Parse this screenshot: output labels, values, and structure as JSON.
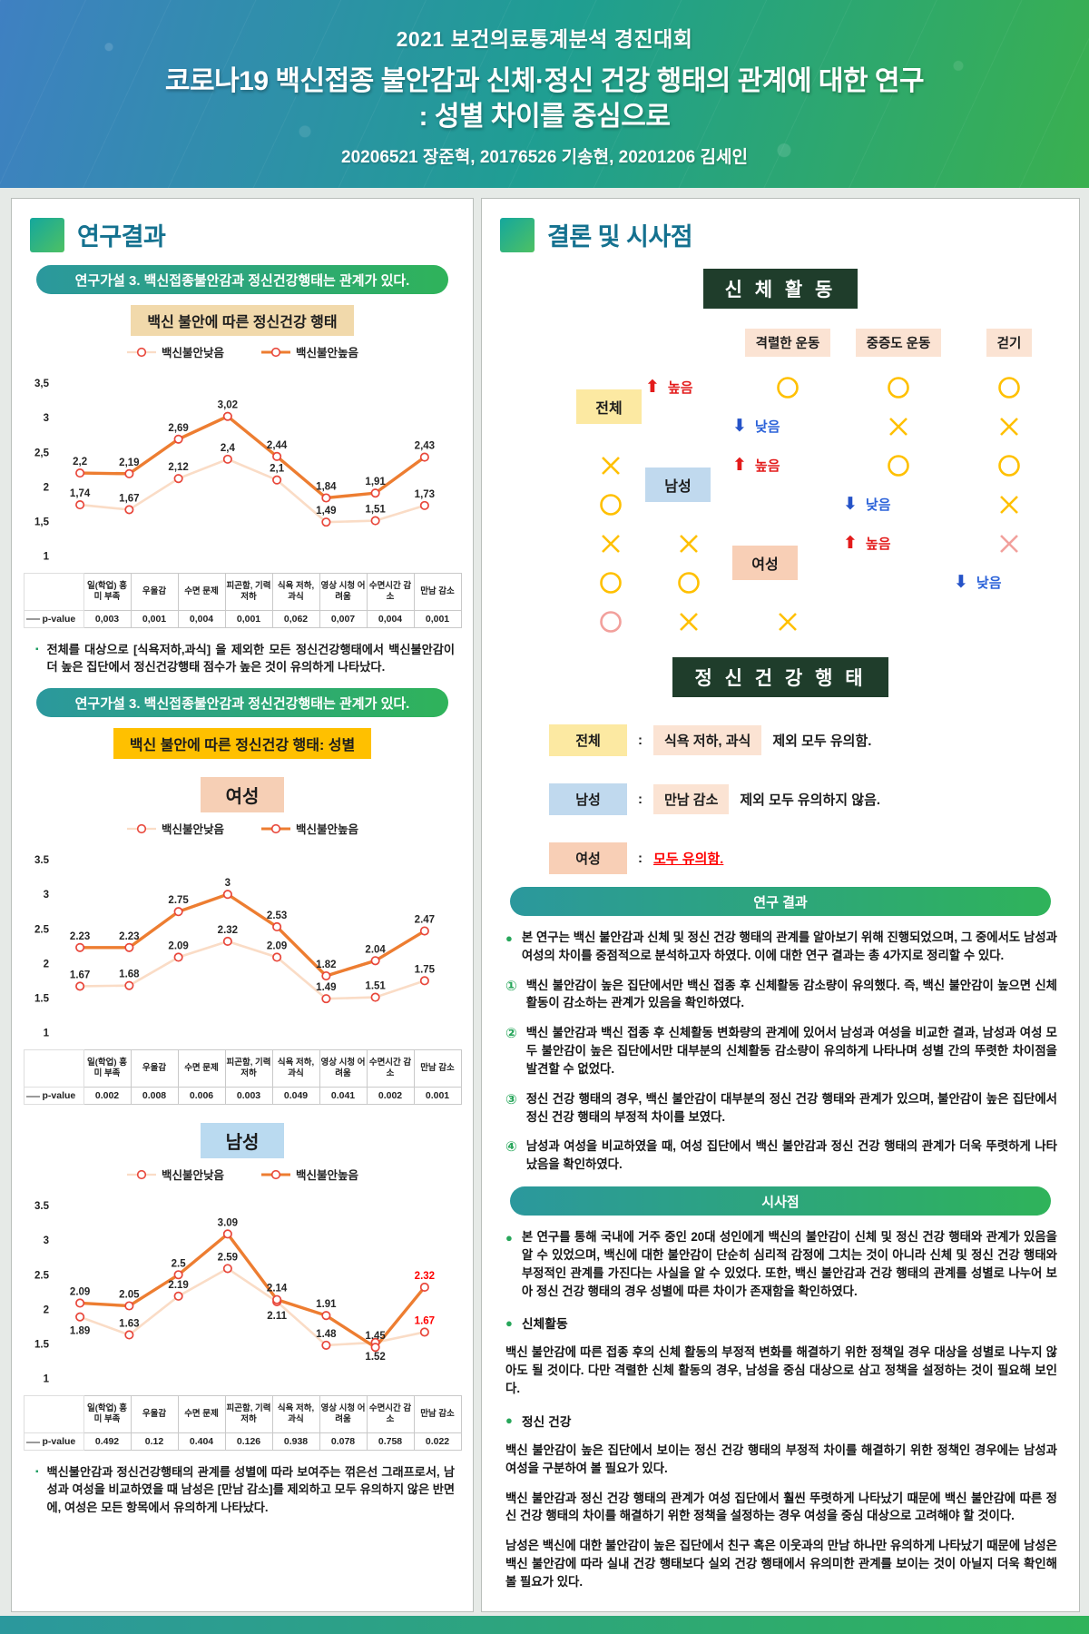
{
  "header": {
    "event": "2021 보건의료통계분석 경진대회",
    "title_line1": "코로나19 백신접종 불안감과 신체·정신 건강 행태의 관계에 대한 연구",
    "title_line2": ": 성별 차이를 중심으로",
    "authors": "20206521 장준혁, 20176526 기송현, 20201206 김세인"
  },
  "left_panel": {
    "section_title": "연구결과",
    "hypothesis_banner1": "연구가설 3. 백신접종불안감과 정신건강행태는 관계가 있다.",
    "chart1_title": "백신 불안에 따른 정신건강 행태",
    "note1": "전체를 대상으로 [식욕저하,과식] 을 제외한 모든 정신건강행태에서 백신불안감이 더 높은 집단에서 정신건강행태 점수가 높은 것이 유의하게 나타났다.",
    "hypothesis_banner2": "연구가설 3. 백신접종불안감과 정신건강행태는 관계가 있다.",
    "chart2_title": "백신 불안에 따른 정신건강 행태: 성별",
    "female_label": "여성",
    "male_label": "남성",
    "note2": "백신불안감과 정신건강행태의 관계를 성별에 따라 보여주는 꺾은선 그래프로서, 남성과 여성을 비교하였을 때 남성은 [만남 감소]를 제외하고 모두 유의하지 않은 반면에, 여성은 모든 항목에서 유의하게 나타났다."
  },
  "chart_data": [
    {
      "name": "전체",
      "type": "line",
      "categories": [
        "일(학업) 흥미 부족",
        "우울감",
        "수면 문제",
        "피곤함, 기력 저하",
        "식욕 저하, 과식",
        "영상 시청 어려움",
        "수면시간 감소",
        "만남 감소"
      ],
      "series": [
        {
          "name": "백신불안낮음",
          "values": [
            1.74,
            1.67,
            2.12,
            2.4,
            2.1,
            1.49,
            1.51,
            1.73
          ],
          "labels": [
            "1,74",
            "1,67",
            "2,12",
            "2,4",
            "2,1",
            "1,49",
            "1,51",
            "1,73"
          ]
        },
        {
          "name": "백신불안높음",
          "values": [
            2.2,
            2.19,
            2.69,
            3.02,
            2.44,
            1.84,
            1.91,
            2.43
          ],
          "labels": [
            "2,2",
            "2,19",
            "2,69",
            "3,02",
            "2,44",
            "1,84",
            "1,91",
            "2,43"
          ]
        }
      ],
      "p_value_label": "p-value",
      "p_values": [
        "0,003",
        "0,001",
        "0,004",
        "0,001",
        "0,062",
        "0,007",
        "0,004",
        "0,001"
      ],
      "ytick_labels": [
        "3,5",
        "3",
        "2,5",
        "2",
        "1,5",
        "1"
      ],
      "ytick_values": [
        3.5,
        3,
        2.5,
        2,
        1.5,
        1
      ],
      "ylim": [
        1,
        3.5
      ],
      "emphasized_index": -1
    },
    {
      "name": "여성",
      "type": "line",
      "categories": [
        "일(학업) 흥미 부족",
        "우울감",
        "수면 문제",
        "피곤함, 기력 저하",
        "식욕 저하, 과식",
        "영상 시청 어려움",
        "수면시간 감소",
        "만남 감소"
      ],
      "series": [
        {
          "name": "백신불안낮음",
          "values": [
            1.67,
            1.68,
            2.09,
            2.32,
            2.09,
            1.49,
            1.51,
            1.75
          ],
          "labels": [
            "1.67",
            "1.68",
            "2.09",
            "2.32",
            "2.09",
            "1.49",
            "1.51",
            "1.75"
          ]
        },
        {
          "name": "백신불안높음",
          "values": [
            2.23,
            2.23,
            2.75,
            3,
            2.53,
            1.82,
            2.04,
            2.47
          ],
          "labels": [
            "2.23",
            "2.23",
            "2.75",
            "3",
            "2.53",
            "1.82",
            "2.04",
            "2.47"
          ]
        }
      ],
      "p_value_label": "p-value",
      "p_values": [
        "0.002",
        "0.008",
        "0.006",
        "0.003",
        "0.049",
        "0.041",
        "0.002",
        "0.001"
      ],
      "ytick_labels": [
        "3.5",
        "3",
        "2.5",
        "2",
        "1.5",
        "1"
      ],
      "ytick_values": [
        3.5,
        3,
        2.5,
        2,
        1.5,
        1
      ],
      "ylim": [
        1,
        3.5
      ],
      "emphasized_index": -1
    },
    {
      "name": "남성",
      "type": "line",
      "categories": [
        "일(학업) 흥미 부족",
        "우울감",
        "수면 문제",
        "피곤함, 기력 저하",
        "식욕 저하, 과식",
        "영상 시청 어려움",
        "수면시간 감소",
        "만남 감소"
      ],
      "series": [
        {
          "name": "백신불안낮음",
          "values": [
            1.89,
            1.63,
            2.19,
            2.59,
            2.11,
            1.48,
            1.52,
            1.67
          ],
          "labels": [
            "1.89",
            "1.63",
            "2.19",
            "2.59",
            "2.11",
            "1.48",
            "1.52",
            "1.67"
          ]
        },
        {
          "name": "백신불안높음",
          "values": [
            2.09,
            2.05,
            2.5,
            3.09,
            2.14,
            1.91,
            1.45,
            2.32
          ],
          "labels": [
            "2.09",
            "2.05",
            "2.5",
            "3.09",
            "2.14",
            "1.91",
            "1.45",
            "2.32"
          ]
        }
      ],
      "p_value_label": "p-value",
      "p_values": [
        "0.492",
        "0.12",
        "0.404",
        "0.126",
        "0.938",
        "0.078",
        "0.758",
        "0.022"
      ],
      "ytick_labels": [
        "3.5",
        "3",
        "2.5",
        "2",
        "1.5",
        "1"
      ],
      "ytick_values": [
        3.5,
        3,
        2.5,
        2,
        1.5,
        1
      ],
      "ylim": [
        1,
        3.5
      ],
      "emphasized_index": 7
    }
  ],
  "right_panel": {
    "section_title": "결론 및 시사점",
    "physical_title": "신  체  활  동",
    "activity_table": {
      "columns": [
        "격렬한 운동",
        "중증도 운동",
        "걷기"
      ],
      "up_label": "높음",
      "down_label": "낮음",
      "groups": [
        {
          "label": "전체",
          "color_key": "t",
          "rows": [
            {
              "dir": "up",
              "marks": [
                "O",
                "O",
                "O"
              ],
              "mark_style": [
                "gold",
                "gold",
                "gold"
              ]
            },
            {
              "dir": "down",
              "marks": [
                "X",
                "X",
                "X"
              ],
              "mark_style": [
                "gold",
                "gold",
                "gold"
              ]
            }
          ]
        },
        {
          "label": "남성",
          "color_key": "m",
          "rows": [
            {
              "dir": "up",
              "marks": [
                "O",
                "O",
                "O"
              ],
              "mark_style": [
                "gold",
                "gold",
                "gold"
              ]
            },
            {
              "dir": "down",
              "marks": [
                "X",
                "X",
                "X"
              ],
              "mark_style": [
                "gold",
                "gold",
                "gold"
              ]
            }
          ]
        },
        {
          "label": "여성",
          "color_key": "f",
          "rows": [
            {
              "dir": "up",
              "marks": [
                "X",
                "O",
                "O"
              ],
              "mark_style": [
                "pink",
                "gold",
                "gold"
              ]
            },
            {
              "dir": "down",
              "marks": [
                "O",
                "X",
                "X"
              ],
              "mark_style": [
                "pink",
                "gold",
                "gold"
              ]
            }
          ]
        }
      ]
    },
    "mental_title": "정 신   건 강 행 태",
    "mental_rows": [
      {
        "label": "전체",
        "color_key": "t",
        "chip": "식욕 저하, 과식",
        "text": "제외 모두 유의함.",
        "red": false
      },
      {
        "label": "남성",
        "color_key": "m",
        "chip": "만남 감소",
        "text": "제외 모두 유의하지 않음.",
        "red": false
      },
      {
        "label": "여성",
        "color_key": "f",
        "chip": null,
        "text": "모두 유의함.",
        "red": true
      }
    ],
    "results_banner": "연구 결과",
    "results_bullets": [
      {
        "marker": "●",
        "text": "본 연구는 백신 불안감과 신체 및 정신 건강 행태의 관계를 알아보기 위해 진행되었으며, 그 중에서도 남성과 여성의 차이를 중점적으로 분석하고자 하였다. 이에 대한 연구 결과는 총 4가지로 정리할 수 있다."
      },
      {
        "marker": "①",
        "text": "백신 불안감이 높은 집단에서만 백신 접종 후 신체활동 감소량이 유의했다. 즉, 백신 불안감이 높으면 신체활동이 감소하는 관계가 있음을 확인하였다."
      },
      {
        "marker": "②",
        "text": "백신 불안감과 백신 접종 후 신체활동 변화량의 관계에 있어서 남성과 여성을 비교한 결과, 남성과 여성 모두 불안감이 높은 집단에서만 대부분의 신체활동 감소량이 유의하게 나타나며 성별 간의 뚜렷한 차이점을 발견할 수 없었다."
      },
      {
        "marker": "③",
        "text": "정신 건강 행태의 경우, 백신 불안감이 대부분의 정신 건강 행태와 관계가 있으며, 불안감이 높은 집단에서 정신 건강 행태의 부정적 차이를 보였다."
      },
      {
        "marker": "④",
        "text": "남성과 여성을 비교하였을 때, 여성 집단에서 백신 불안감과 정신 건강 행태의 관계가 더욱 뚜렷하게 나타났음을 확인하였다."
      }
    ],
    "implications_banner": "시사점",
    "implications": [
      {
        "style": "lead",
        "text": "본 연구를 통해 국내에 거주 중인 20대 성인에게 백신의 불안감이 신체 및 정신 건강 행태와 관계가 있음을 알 수 있었으며, 백신에 대한 불안감이 단순히 심리적 감정에 그치는 것이 아니라 신체 및 정신 건강 행태와 부정적인 관계를 가진다는 사실을 알 수 있었다. 또한, 백신 불안감과 건강 행태의 관계를 성별로 나누어 보아 정신 건강 행태의 경우 성별에 따른 차이가 존재함을 확인하였다."
      },
      {
        "style": "header",
        "text": "신체활동"
      },
      {
        "style": "para",
        "text": "백신 불안감에 따른 접종 후의 신체 활동의 부정적 변화를 해결하기 위한 정책일 경우 대상을 성별로 나누지 않아도 될 것이다. 다만 격렬한 신체 활동의 경우, 남성을 중심 대상으로 삼고 정책을 설정하는 것이 필요해 보인다."
      },
      {
        "style": "header",
        "text": "정신 건강"
      },
      {
        "style": "para",
        "text": "백신 불안감이 높은 집단에서 보이는 정신 건강 행태의 부정적 차이를 해결하기 위한 정책인 경우에는 남성과 여성을 구분하여 볼 필요가 있다."
      },
      {
        "style": "para",
        "text": "백신 불안감과 정신 건강 행태의 관계가 여성 집단에서 훨씬 뚜렷하게 나타났기 때문에 백신 불안감에 따른 정신 건강 행태의 차이를 해결하기 위한 정책을 설정하는 경우 여성을 중심 대상으로 고려해야 할 것이다."
      },
      {
        "style": "para",
        "text": "남성은 백신에 대한 불안감이 높은 집단에서 친구 혹은 이웃과의 만남 하나만 유의하게 나타났기 때문에 남성은 백신 불안감에 따라 실내 건강 행태보다 실외 건강 행태에서 유의미한 관계를 보이는 것이 아닐지 더욱 확인해볼 필요가 있다."
      }
    ],
    "colors": {
      "mark_gold": "#FFC000",
      "mark_pink": "#F2A09C",
      "line_high": "#ED7D31",
      "line_low": "#FADCC6",
      "marker_stroke": "#E8473B",
      "emphasis_red": "#FF0000"
    }
  }
}
